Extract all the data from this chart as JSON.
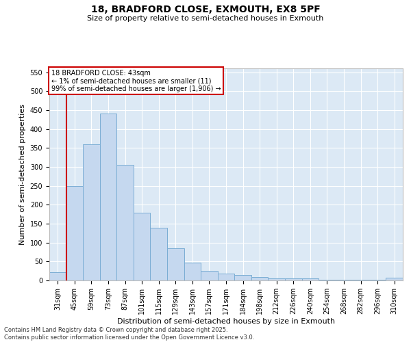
{
  "title_line1": "18, BRADFORD CLOSE, EXMOUTH, EX8 5PF",
  "title_line2": "Size of property relative to semi-detached houses in Exmouth",
  "xlabel": "Distribution of semi-detached houses by size in Exmouth",
  "ylabel": "Number of semi-detached properties",
  "categories": [
    "31sqm",
    "45sqm",
    "59sqm",
    "73sqm",
    "87sqm",
    "101sqm",
    "115sqm",
    "129sqm",
    "143sqm",
    "157sqm",
    "171sqm",
    "184sqm",
    "198sqm",
    "212sqm",
    "226sqm",
    "240sqm",
    "254sqm",
    "268sqm",
    "282sqm",
    "296sqm",
    "310sqm"
  ],
  "bar_values": [
    21,
    250,
    360,
    440,
    305,
    178,
    140,
    85,
    47,
    26,
    18,
    15,
    9,
    6,
    5,
    5,
    2,
    2,
    2,
    2,
    7
  ],
  "bar_color": "#c5d8ef",
  "bar_edge_color": "#7aadd4",
  "annotation_box_edge_color": "#cc0000",
  "annotation_text": "18 BRADFORD CLOSE: 43sqm\n← 1% of semi-detached houses are smaller (11)\n99% of semi-detached houses are larger (1,906) →",
  "vline_color": "#cc0000",
  "vline_x": 0.5,
  "ylim": [
    0,
    560
  ],
  "yticks": [
    0,
    50,
    100,
    150,
    200,
    250,
    300,
    350,
    400,
    450,
    500,
    550
  ],
  "bg_color": "#dce9f5",
  "grid_color": "#ffffff",
  "footer": "Contains HM Land Registry data © Crown copyright and database right 2025.\nContains public sector information licensed under the Open Government Licence v3.0.",
  "title_fontsize": 10,
  "subtitle_fontsize": 8,
  "ylabel_fontsize": 8,
  "xlabel_fontsize": 8,
  "tick_fontsize": 7,
  "annotation_fontsize": 7,
  "footer_fontsize": 6
}
